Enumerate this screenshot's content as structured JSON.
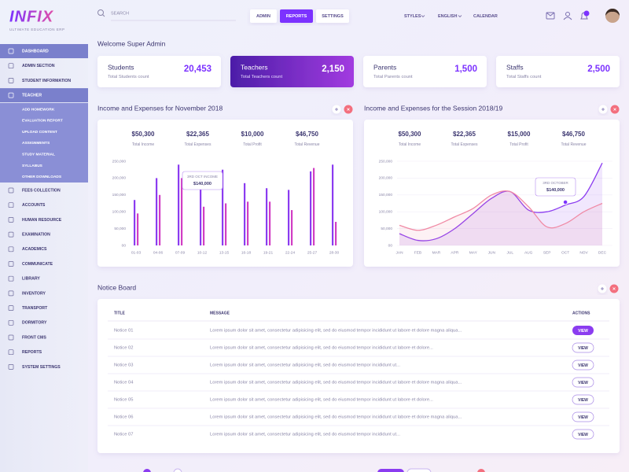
{
  "header": {
    "logo": "INFIX",
    "tagline": "ULTIMATE EDUCATION ERP",
    "search": "SEARCH",
    "tabs": [
      "ADMIN",
      "REPORTS",
      "SETTINGS"
    ],
    "menu": [
      "STYLES",
      "ENGLISH",
      "CALENDAR"
    ]
  },
  "sidebar": {
    "items": [
      "DASHBOARD",
      "ADMIN SECTION",
      "STUDENT INFORMATION",
      "TEACHER",
      "FEES COLLECTION",
      "ACCOUNTS",
      "HUMAN RESOURCE",
      "EXAMINATION",
      "ACADEMICS",
      "COMMUNICATE",
      "LIBRARY",
      "INVENTORY",
      "TRANSPORT",
      "DORMITORY",
      "FRONT CMS",
      "REPORTS",
      "SYSTEM SETTINGS"
    ],
    "teacher_submenu": [
      "ADD HOMEWORK",
      "EVALUATION REPORT",
      "UPLOAD CONTENT",
      "ASSIGNMENTS",
      "STUDY MATERIAL",
      "SYLLABUS",
      "OTHER DOWNLOADS"
    ]
  },
  "welcome": "Welcome Super Admin",
  "cards": [
    {
      "title": "Students",
      "subtitle": "Total Students count",
      "value": "20,453"
    },
    {
      "title": "Teachers",
      "subtitle": "Total Teachers count",
      "value": "2,150"
    },
    {
      "title": "Parents",
      "subtitle": "Total Parents count",
      "value": "1,500"
    },
    {
      "title": "Staffs",
      "subtitle": "Total Staffs count",
      "value": "2,500"
    }
  ],
  "charts": [
    {
      "type": "bar",
      "title": "Income and Expenses for November 2018",
      "summary": [
        {
          "value": "$50,300",
          "label": "Total Income"
        },
        {
          "value": "$22,365",
          "label": "Total Expenses"
        },
        {
          "value": "$10,000",
          "label": "Total Profit"
        },
        {
          "value": "$46,750",
          "label": "Total Revenue"
        }
      ],
      "categories": [
        "01-03",
        "04-06",
        "07-09",
        "10-12",
        "13-15",
        "16-18",
        "19-21",
        "22-24",
        "25-27",
        "28-30"
      ],
      "series": [
        {
          "color": "#8b3cf0",
          "values": [
            135000,
            200000,
            240000,
            170000,
            225000,
            185000,
            170000,
            165000,
            220000,
            240000
          ]
        },
        {
          "color": "#d13fc4",
          "values": [
            95000,
            150000,
            200000,
            115000,
            125000,
            130000,
            130000,
            105000,
            230000,
            70000
          ]
        }
      ],
      "ylim": [
        0,
        250000
      ],
      "yticks": [
        {
          "value": 0,
          "label": "00"
        },
        {
          "value": 50000,
          "label": "50,000"
        },
        {
          "value": 100000,
          "label": "100,000"
        },
        {
          "value": 150000,
          "label": "150,000"
        },
        {
          "value": 200000,
          "label": "200,000"
        },
        {
          "value": 250000,
          "label": "250,000"
        }
      ],
      "tooltip": {
        "title": "3RD OCT INCOME",
        "value": "$140,000"
      }
    },
    {
      "type": "line",
      "title": "Income and Expenses for the Session 2018/19",
      "summary": [
        {
          "value": "$50,300",
          "label": "Total Income"
        },
        {
          "value": "$22,365",
          "label": "Total Expenses"
        },
        {
          "value": "$15,000",
          "label": "Total Profit"
        },
        {
          "value": "$46,750",
          "label": "Total Revenue"
        }
      ],
      "categories": [
        "JAN",
        "FEB",
        "MAR",
        "APR",
        "MAY",
        "JUN",
        "JUL",
        "AUG",
        "SEP",
        "OCT",
        "NOV",
        "DEC"
      ],
      "series": [
        {
          "color": "#8b3cf0",
          "values": [
            35000,
            15000,
            20000,
            50000,
            95000,
            140000,
            160000,
            105000,
            100000,
            120000,
            145000,
            245000
          ]
        },
        {
          "color": "#f08aa5",
          "values": [
            60000,
            45000,
            60000,
            85000,
            110000,
            150000,
            160000,
            115000,
            55000,
            65000,
            100000,
            125000
          ]
        }
      ],
      "ylim": [
        0,
        250000
      ],
      "yticks": [
        {
          "value": 0,
          "label": "00"
        },
        {
          "value": 50000,
          "label": "50,000"
        },
        {
          "value": 100000,
          "label": "100,000"
        },
        {
          "value": 150000,
          "label": "150,000"
        },
        {
          "value": 200000,
          "label": "200,000"
        },
        {
          "value": 250000,
          "label": "250,000"
        }
      ],
      "tooltip": {
        "title": "3RD OCTOBER",
        "value": "$140,000"
      }
    }
  ],
  "notice_board": {
    "title": "Notice Board",
    "columns": [
      "TITLE",
      "MESSAGE",
      "ACTIONS"
    ],
    "rows": [
      [
        "Notice 01",
        "Lorem ipsum dolor sit amet, consectetur adipisicing elit, sed do eiusmod tempor incididunt ut labore et dolore magna aliqua...",
        "VIEW"
      ],
      [
        "Notice 02",
        "Lorem ipsum dolor sit amet, consectetur adipisicing elit, sed do eiusmod tempor incididunt ut labore et dolore...",
        "VIEW"
      ],
      [
        "Notice 03",
        "Lorem ipsum dolor sit amet, consectetur adipisicing elit, sed do eiusmod tempor incididunt ut...",
        "VIEW"
      ],
      [
        "Notice 04",
        "Lorem ipsum dolor sit amet, consectetur adipisicing elit, sed do eiusmod tempor incididunt ut labore et dolore magna aliqua...",
        "VIEW"
      ],
      [
        "Notice 05",
        "Lorem ipsum dolor sit amet, consectetur adipisicing elit, sed do eiusmod tempor incididunt ut labore et dolore...",
        "VIEW"
      ],
      [
        "Notice 06",
        "Lorem ipsum dolor sit amet, consectetur adipisicing elit, sed do eiusmod tempor incididunt ut labore et dolore magna aliqua...",
        "VIEW"
      ],
      [
        "Notice 07",
        "Lorem ipsum dolor sit amet, consectetur adipisicing elit, sed do eiusmod tempor incididunt ut...",
        "VIEW"
      ]
    ]
  }
}
